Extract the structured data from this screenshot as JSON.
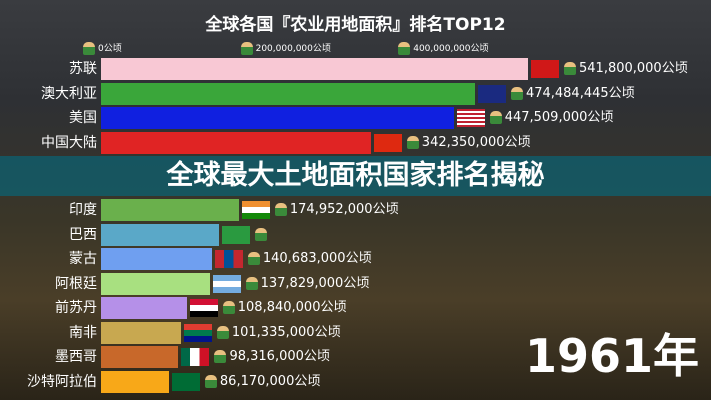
{
  "chart_data": {
    "type": "bar",
    "orientation": "horizontal",
    "title": "全球各国『农业用地面积』排名TOP12",
    "unit": "公顷",
    "xlim": [
      0,
      541800000
    ],
    "ticks": [
      "0公顷",
      "200,000,000公顷",
      "400,000,000公顷"
    ],
    "tick_values": [
      0,
      200000000,
      400000000
    ],
    "categories": [
      "苏联",
      "澳大利亚",
      "美国",
      "中国大陆",
      "印度",
      "巴西",
      "蒙古",
      "阿根廷",
      "前苏丹",
      "南非",
      "墨西哥",
      "沙特阿拉伯"
    ],
    "values": [
      541800000,
      474484445,
      447509000,
      342350000,
      174952000,
      150000000,
      140683000,
      137829000,
      108840000,
      101335000,
      98316000,
      86170000
    ],
    "value_labels": [
      "541,800,000公顷",
      "474,484,445公顷",
      "447,509,000公顷",
      "342,350,000公顷",
      "174,952,000公顷",
      "",
      "140,683,000公顷",
      "137,829,000公顷",
      "108,840,000公顷",
      "101,335,000公顷",
      "98,316,000公顷",
      "86,170,000公顷"
    ],
    "colors": [
      "#f8c8d4",
      "#3aa63a",
      "#1020e0",
      "#e02424",
      "#6ab04c",
      "#5aa8c8",
      "#6f9ff0",
      "#a8e080",
      "#b590e8",
      "#c8a850",
      "#c8682a",
      "#f8a818"
    ],
    "flags": [
      "ussr-flag",
      "australia-flag",
      "usa-flag",
      "china-flag",
      "india-flag",
      "brazil-flag",
      "mongolia-flag",
      "argentina-flag",
      "sudan-flag",
      "south-africa-flag",
      "mexico-flag",
      "saudi-flag"
    ]
  },
  "banner": "全球最大土地面积国家排名揭秘",
  "year": "1961年"
}
